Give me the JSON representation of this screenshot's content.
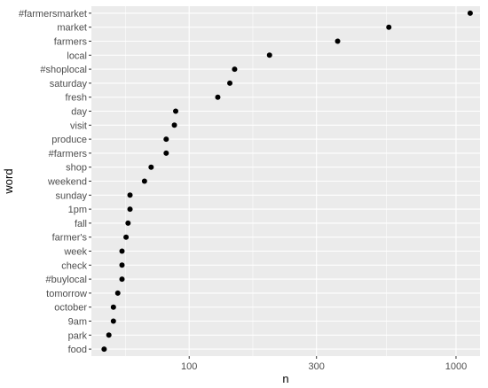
{
  "chart_data": {
    "type": "scatter",
    "title": "",
    "xlabel": "n",
    "ylabel": "word",
    "x_scale": "log10",
    "xlim": [
      43,
      1230
    ],
    "x_ticks": [
      100,
      300,
      1000
    ],
    "x_tick_labels": [
      "100",
      "300",
      "1000"
    ],
    "grid": true,
    "legend": "none",
    "categories": [
      "#farmersmarket",
      "market",
      "farmers",
      "local",
      "#shoplocal",
      "saturday",
      "fresh",
      "day",
      "visit",
      "produce",
      "#farmers",
      "shop",
      "weekend",
      "sunday",
      "1pm",
      "fall",
      "farmer's",
      "week",
      "check",
      "#buylocal",
      "tomorrow",
      "october",
      "9am",
      "park",
      "food"
    ],
    "values": [
      1130,
      560,
      360,
      200,
      148,
      142,
      128,
      89,
      88,
      82,
      82,
      72,
      68,
      60,
      60,
      59,
      58,
      56,
      56,
      56,
      54,
      52,
      52,
      50,
      48
    ]
  },
  "colors": {
    "panel_bg": "#ebebeb",
    "grid_major": "#ffffff",
    "point": "#000000",
    "axis_text": "#4d4d4d",
    "title_text": "#000000"
  }
}
